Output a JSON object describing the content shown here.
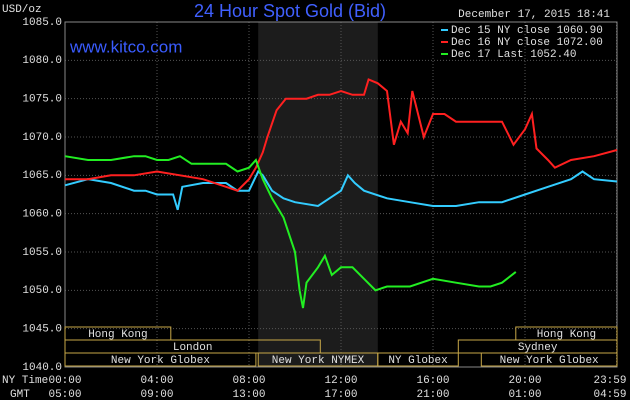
{
  "chart_data": {
    "type": "line",
    "title": "24 Hour Spot Gold (Bid)",
    "unit_label": "USD/oz",
    "timestamp": "December 17, 2015 18:41",
    "site": "www.kitco.com",
    "x_row_labels": [
      "NY Time",
      "GMT"
    ],
    "xlim": [
      0,
      24
    ],
    "ylim": [
      1040,
      1085
    ],
    "xticks": [
      {
        "value": 0,
        "label": "00:00"
      },
      {
        "value": 4,
        "label": "04:00"
      },
      {
        "value": 8,
        "label": "08:00"
      },
      {
        "value": 12,
        "label": "12:00"
      },
      {
        "value": 16,
        "label": "16:00"
      },
      {
        "value": 20,
        "label": "20:00"
      },
      {
        "value": 23.98,
        "label": "23:59"
      }
    ],
    "x2ticks": [
      {
        "value": 0,
        "label": "05:00"
      },
      {
        "value": 4,
        "label": "09:00"
      },
      {
        "value": 8,
        "label": "13:00"
      },
      {
        "value": 12,
        "label": "17:00"
      },
      {
        "value": 16,
        "label": "21:00"
      },
      {
        "value": 20,
        "label": "01:00"
      },
      {
        "value": 23.98,
        "label": "04:59"
      }
    ],
    "yticks": [
      {
        "value": 1040,
        "label": "1040.0"
      },
      {
        "value": 1045,
        "label": "1045.0"
      },
      {
        "value": 1050,
        "label": "1050.0"
      },
      {
        "value": 1055,
        "label": "1055.0"
      },
      {
        "value": 1060,
        "label": "1060.0"
      },
      {
        "value": 1065,
        "label": "1065.0"
      },
      {
        "value": 1070,
        "label": "1070.0"
      },
      {
        "value": 1075,
        "label": "1075.0"
      },
      {
        "value": 1080,
        "label": "1080.0"
      },
      {
        "value": 1085,
        "label": "1085.0"
      }
    ],
    "grid": true,
    "shaded_range": [
      8.4,
      13.6
    ],
    "sessions": [
      [
        {
          "label": "Hong Kong",
          "start": 0,
          "end": 4.6
        },
        {
          "label": "Hong Kong",
          "start": 19.6,
          "end": 24
        }
      ],
      [
        {
          "label": "London",
          "start": 0,
          "end": 11.1
        },
        {
          "label": "Sydney",
          "start": 17.1,
          "end": 24
        }
      ],
      [
        {
          "label": "New York Globex",
          "start": 0,
          "end": 8.3
        },
        {
          "label": "New York NYMEX",
          "start": 8.4,
          "end": 13.6
        },
        {
          "label": "NY Globex",
          "start": 13.6,
          "end": 17.1
        },
        {
          "label": "New York Globex",
          "start": 18.1,
          "end": 24
        }
      ]
    ],
    "series": [
      {
        "name": "Dec 15 NY close 1060.90",
        "color": "#33ccff",
        "x": [
          0,
          1,
          2,
          3,
          3.5,
          4,
          4.7,
          4.9,
          5.1,
          6,
          7,
          7.5,
          8,
          8.4,
          8.6,
          9,
          9.5,
          10,
          11,
          11.5,
          12,
          12.3,
          12.6,
          13,
          14,
          15,
          16,
          17,
          18,
          19,
          20,
          21,
          22,
          22.5,
          23,
          24
        ],
        "values": [
          1063.7,
          1064.5,
          1064,
          1063,
          1063,
          1062.5,
          1062.5,
          1060.5,
          1063.5,
          1064,
          1064,
          1063,
          1063,
          1065.5,
          1065,
          1063,
          1062,
          1061.5,
          1061,
          1062,
          1063,
          1065,
          1064,
          1063,
          1062,
          1061.5,
          1061,
          1061,
          1061.5,
          1061.5,
          1062.5,
          1063.5,
          1064.5,
          1065.5,
          1064.5,
          1064.2
        ]
      },
      {
        "name": "Dec 16 NY close 1072.00",
        "color": "#ff2020",
        "x": [
          0,
          1,
          2,
          3,
          4,
          5,
          6,
          7,
          7.5,
          8,
          8.3,
          8.6,
          8.8,
          9.2,
          9.6,
          10,
          10.5,
          11,
          11.5,
          12,
          12.5,
          13,
          13.2,
          13.6,
          14,
          14.3,
          14.6,
          14.9,
          15.1,
          15.6,
          16,
          16.5,
          17,
          18,
          19,
          19.5,
          20,
          20.3,
          20.5,
          21,
          21.3,
          22,
          23,
          24
        ],
        "values": [
          1064.5,
          1064.5,
          1065,
          1065,
          1065.5,
          1065,
          1064.5,
          1063.5,
          1063,
          1064.5,
          1066,
          1068,
          1070,
          1073.5,
          1075,
          1075,
          1075,
          1075.5,
          1075.5,
          1076,
          1075.5,
          1075.5,
          1077.5,
          1077,
          1076,
          1069,
          1072,
          1070.5,
          1076,
          1070,
          1073,
          1073,
          1072,
          1072,
          1072,
          1069,
          1071,
          1073,
          1068.5,
          1067,
          1066,
          1067,
          1067.5,
          1068.3
        ]
      },
      {
        "name": "Dec 17 Last 1052.40",
        "color": "#22ee22",
        "x": [
          0,
          1,
          2,
          3,
          3.5,
          4,
          4.5,
          5,
          5.5,
          6,
          6.5,
          7,
          7.5,
          8,
          8.3,
          8.6,
          9,
          9.5,
          10,
          10.2,
          10.35,
          10.5,
          11,
          11.3,
          11.6,
          12,
          12.5,
          13,
          13.5,
          14,
          15,
          16,
          17,
          18,
          18.5,
          19,
          19.6
        ],
        "values": [
          1067.5,
          1067,
          1067,
          1067.5,
          1067.5,
          1067,
          1067,
          1067.5,
          1066.5,
          1066.5,
          1066.5,
          1066.5,
          1065.5,
          1066,
          1067,
          1064.5,
          1062,
          1059.5,
          1055,
          1050,
          1047.7,
          1051,
          1053,
          1054.5,
          1052,
          1053,
          1053,
          1051.5,
          1050,
          1050.5,
          1050.5,
          1051.5,
          1051,
          1050.5,
          1050.5,
          1051,
          1052.4
        ]
      }
    ]
  }
}
